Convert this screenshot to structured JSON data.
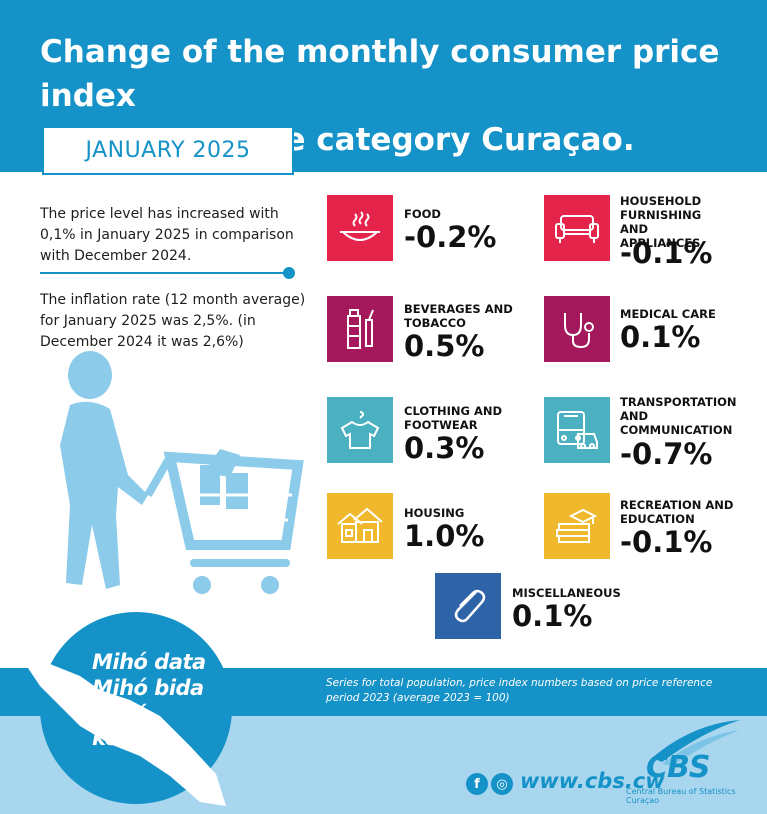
{
  "header": {
    "title_line1": "Change of the monthly consumer price index",
    "title_line2": "by expenditure category Curaçao.",
    "month": "JANUARY 2025"
  },
  "intro": {
    "paragraph1": "The price level has increased with 0,1% in January 2025 in comparison with December 2024.",
    "paragraph2": "The inflation rate (12 month average) for January 2025 was 2,5%. (in December 2024 it was 2,6%)"
  },
  "categories": [
    {
      "name": "FOOD",
      "value": "-0.2%",
      "color": "#e5244b",
      "icon": "food-bowl-icon"
    },
    {
      "name": "HOUSEHOLD FURNISHING AND APPLIANCES",
      "value": "-0.1%",
      "color": "#e5244b",
      "icon": "sofa-icon"
    },
    {
      "name": "BEVERAGES AND TOBACCO",
      "value": "0.5%",
      "color": "#a3195b",
      "icon": "bottle-icon"
    },
    {
      "name": "MEDICAL CARE",
      "value": "0.1%",
      "color": "#a3195b",
      "icon": "stethoscope-icon"
    },
    {
      "name": "CLOTHING AND FOOTWEAR",
      "value": "0.3%",
      "color": "#4bb0c0",
      "icon": "shirt-icon"
    },
    {
      "name": "TRANSPORTATION AND COMMUNICATION",
      "value": "-0.7%",
      "color": "#4bb0c0",
      "icon": "bus-icon"
    },
    {
      "name": "HOUSING",
      "value": "1.0%",
      "color": "#f0b92d",
      "icon": "house-icon"
    },
    {
      "name": "RECREATION AND EDUCATION",
      "value": "-0.1%",
      "color": "#f0b92d",
      "icon": "books-icon"
    },
    {
      "name": "MISCELLANEOUS",
      "value": "0.1%",
      "color": "#2e63a8",
      "icon": "paperclip-icon"
    }
  ],
  "footer": {
    "note": "Series for total population, price index numbers based on price reference period 2023 (average 2023 = 100)",
    "slogan1": "Mihó data",
    "slogan2": "Mihó bida",
    "slogan3": "Mihó kòrsou",
    "website": "www.cbs.cw",
    "logo_text": "CBS",
    "logo_sub": "Central Bureau of Statistics Curaçao"
  }
}
